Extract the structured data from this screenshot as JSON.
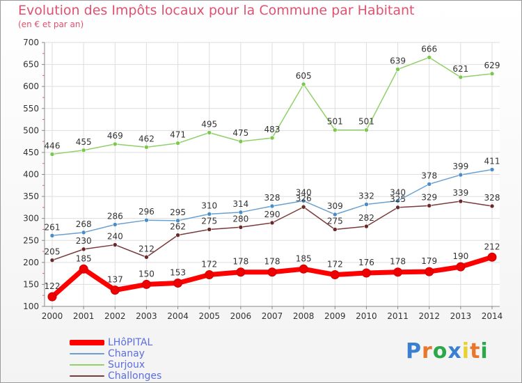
{
  "header": {
    "title": "Evolution des Impôts locaux pour la Commune par Habitant",
    "subtitle": "(en € et par an)"
  },
  "logo": {
    "text": "Proxiti",
    "letter_colors": [
      "#3a7fd0",
      "#e8762c",
      "#2aa84a",
      "#3a7fd0",
      "#e8d12c",
      "#e8762c",
      "#2aa84a"
    ]
  },
  "chart_data": {
    "type": "line",
    "x": [
      "2000",
      "2001",
      "2002",
      "2003",
      "2004",
      "2005",
      "2006",
      "2007",
      "2008",
      "2009",
      "2010",
      "2011",
      "2012",
      "2013",
      "2014"
    ],
    "ylim": [
      100,
      700
    ],
    "yticks": [
      "100",
      "150",
      "200",
      "250",
      "300",
      "350",
      "400",
      "450",
      "500",
      "550",
      "600",
      "650",
      "700"
    ],
    "grid": true,
    "legend_position": "bottom-left",
    "series": [
      {
        "name": "Surjoux",
        "color": "#8fd06a",
        "marker_color": "#7cc84e",
        "values": [
          446,
          455,
          469,
          462,
          471,
          495,
          475,
          483,
          605,
          501,
          501,
          639,
          666,
          621,
          629
        ]
      },
      {
        "name": "Chanay",
        "color": "#6aa0d0",
        "marker_color": "#4a8cc8",
        "values": [
          261,
          268,
          286,
          296,
          295,
          310,
          314,
          328,
          340,
          309,
          332,
          340,
          378,
          399,
          411
        ]
      },
      {
        "name": "Challonges",
        "color": "#7a3a3a",
        "marker_color": "#6a2a2a",
        "values": [
          205,
          230,
          240,
          212,
          262,
          275,
          280,
          290,
          326,
          275,
          282,
          325,
          329,
          339,
          328
        ]
      },
      {
        "name": "LHôPITAL",
        "color": "#ff0000",
        "marker_color": "#ee0000",
        "values": [
          122,
          185,
          137,
          150,
          153,
          172,
          178,
          178,
          185,
          172,
          176,
          178,
          179,
          190,
          212
        ]
      }
    ]
  }
}
